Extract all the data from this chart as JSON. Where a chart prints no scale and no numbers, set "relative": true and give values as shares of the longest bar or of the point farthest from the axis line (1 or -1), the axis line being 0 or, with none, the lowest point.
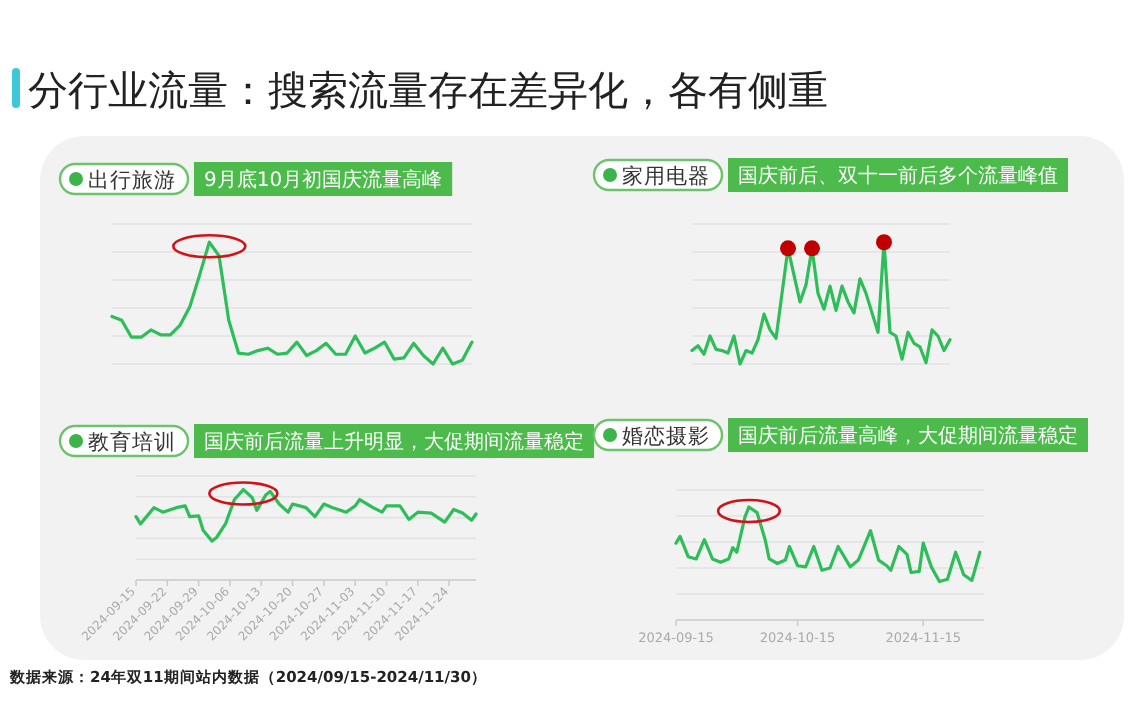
{
  "chart_data": [
    {
      "type": "line",
      "title": "出行旅游",
      "subtitle": "9月底10月初国庆流量高峰",
      "annotations": [
        "分行业流量：搜索流量存在差异化，各有侧重"
      ],
      "relative": true,
      "grid": "y",
      "categories": [
        null,
        null,
        null,
        null,
        null,
        null,
        null,
        null,
        null,
        null,
        null,
        null,
        null,
        null,
        null,
        null,
        null,
        null,
        null,
        null,
        null,
        null,
        null,
        null,
        null,
        null,
        null,
        null,
        null,
        null,
        null,
        null,
        null,
        null,
        null,
        null,
        null,
        null
      ],
      "series": [
        {
          "color": "#2dbe5a",
          "values": [
            0.39,
            0.36,
            0.22,
            0.22,
            0.28,
            0.24,
            0.24,
            0.32,
            0.47,
            0.73,
            1.0,
            0.89,
            0.36,
            0.09,
            0.08,
            0.11,
            0.13,
            0.08,
            0.09,
            0.18,
            0.07,
            0.11,
            0.17,
            0.08,
            0.08,
            0.23,
            0.09,
            0.13,
            0.18,
            0.04,
            0.05,
            0.17,
            0.07,
            0,
            0.13,
            0,
            0.03,
            0.18
          ]
        }
      ]
    },
    {
      "type": "line",
      "title": "家用电器",
      "subtitle": "国庆前后、双十一前后多个流量峰值",
      "relative": true,
      "grid": "y",
      "categories": [
        null,
        null,
        null,
        null,
        null,
        null,
        null,
        null,
        null,
        null,
        null,
        null,
        null,
        null,
        null,
        null,
        null,
        null,
        null,
        null,
        null,
        null,
        null,
        null,
        null,
        null,
        null,
        null,
        null,
        null,
        null,
        null,
        null,
        null,
        null,
        null,
        null,
        null,
        null,
        null,
        null,
        null,
        null,
        null
      ],
      "series": [
        {
          "color": "#2dbe5a",
          "values": [
            0.11,
            0.15,
            0.08,
            0.23,
            0.12,
            0.11,
            0.09,
            0.23,
            0,
            0.11,
            0.09,
            0.2,
            0.41,
            0.28,
            0.21,
            0.58,
            0.95,
            0.73,
            0.51,
            0.65,
            0.95,
            0.58,
            0.45,
            0.64,
            0.44,
            0.64,
            0.51,
            0.42,
            0.7,
            0.58,
            0.42,
            0.26,
            1.0,
            0.26,
            0.23,
            0.04,
            0.26,
            0.17,
            0.14,
            0.01,
            0.28,
            0.23,
            0.11,
            0.2
          ]
        }
      ]
    },
    {
      "type": "line",
      "title": "教育培训",
      "subtitle": "国庆前后流量上升明显，大促期间流量稳定",
      "annotations": [
        "数据来源：24年双11期间站内数据（2024/09/15-2024/11/30）"
      ],
      "relative": true,
      "grid": "y",
      "x": [
        "2024-09-15",
        "2024-09-16",
        "2024-09-19",
        "2024-09-21",
        "2024-09-24",
        "2024-09-26",
        "2024-09-27",
        "2024-09-29",
        "2024-09-30",
        "2024-10-02",
        "2024-10-03",
        "2024-10-05",
        "2024-10-07",
        "2024-10-09",
        "2024-10-11",
        "2024-10-12",
        "2024-10-14",
        "2024-10-15",
        "2024-10-17",
        "2024-10-19",
        "2024-10-20",
        "2024-10-23",
        "2024-10-25",
        "2024-10-27",
        "2024-10-29",
        "2024-11-01",
        "2024-11-03",
        "2024-11-04",
        "2024-11-07",
        "2024-11-09",
        "2024-11-10",
        "2024-11-13",
        "2024-11-15",
        "2024-11-17",
        "2024-11-20",
        "2024-11-23",
        "2024-11-25",
        "2024-11-27",
        "2024-11-29",
        "2024-11-30"
      ],
      "xlim": [
        "2024-09-15",
        "2024-11-30"
      ],
      "xticks": [
        "2024-09-15",
        "2024-09-22",
        "2024-09-29",
        "2024-10-06",
        "2024-10-13",
        "2024-10-20",
        "2024-10-27",
        "2024-11-03",
        "2024-11-10",
        "2024-11-17",
        "2024-11-24"
      ],
      "series": [
        {
          "color": "#2dbe5a",
          "values": [
            0.7,
            0.62,
            0.8,
            0.75,
            0.8,
            0.82,
            0.7,
            0.71,
            0.55,
            0.43,
            0.47,
            0.62,
            0.89,
            1.0,
            0.91,
            0.77,
            0.94,
            0.98,
            0.84,
            0.75,
            0.84,
            0.8,
            0.7,
            0.84,
            0.8,
            0.75,
            0.82,
            0.89,
            0.8,
            0.75,
            0.82,
            0.82,
            0.67,
            0.75,
            0.74,
            0.64,
            0.78,
            0.74,
            0.66,
            0.73
          ]
        }
      ]
    },
    {
      "type": "line",
      "title": "婚恋摄影",
      "subtitle": "国庆前后流量高峰，大促期间流量稳定",
      "relative": true,
      "grid": "y",
      "x": [
        "2024-09-15",
        "2024-09-16",
        "2024-09-18",
        "2024-09-20",
        "2024-09-22",
        "2024-09-24",
        "2024-09-26",
        "2024-09-28",
        "2024-09-29",
        "2024-09-30",
        "2024-10-02",
        "2024-10-03",
        "2024-10-05",
        "2024-10-07",
        "2024-10-08",
        "2024-10-10",
        "2024-10-12",
        "2024-10-13",
        "2024-10-15",
        "2024-10-17",
        "2024-10-19",
        "2024-10-21",
        "2024-10-23",
        "2024-10-25",
        "2024-10-28",
        "2024-10-30",
        "2024-11-02",
        "2024-11-04",
        "2024-11-06",
        "2024-11-07",
        "2024-11-09",
        "2024-11-11",
        "2024-11-12",
        "2024-11-14",
        "2024-11-15",
        "2024-11-17",
        "2024-11-19",
        "2024-11-21",
        "2024-11-23",
        "2024-11-25",
        "2024-11-27",
        "2024-11-29"
      ],
      "xlim": [
        "2024-09-15",
        "2024-11-30"
      ],
      "xticks": [
        "2024-09-15",
        "2024-10-15",
        "2024-11-15"
      ],
      "series": [
        {
          "color": "#2dbe5a",
          "values": [
            0.68,
            0.74,
            0.56,
            0.54,
            0.71,
            0.54,
            0.51,
            0.54,
            0.64,
            0.6,
            0.91,
            1.0,
            0.95,
            0.71,
            0.54,
            0.5,
            0.53,
            0.65,
            0.48,
            0.47,
            0.65,
            0.44,
            0.46,
            0.65,
            0.47,
            0.53,
            0.79,
            0.53,
            0.48,
            0.44,
            0.65,
            0.58,
            0.42,
            0.43,
            0.68,
            0.47,
            0.34,
            0.36,
            0.6,
            0.4,
            0.35,
            0.6
          ]
        }
      ]
    }
  ]
}
